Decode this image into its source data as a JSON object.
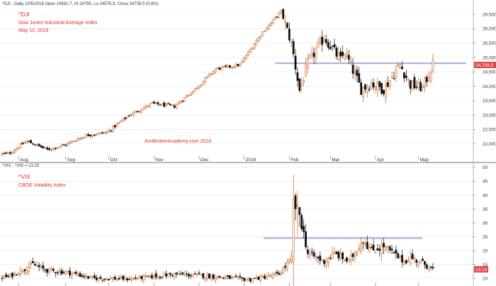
{
  "colors": {
    "up_candle": "#c8641e",
    "down_candle": "#111111",
    "annotation_red": "#e03030",
    "resistance_line": "#b4b0dc",
    "price_badge": "#e04848",
    "grid": "#e6e6e6"
  },
  "top_panel": {
    "header": "^DJI - Daily 10/5/2018 Open 24591.7, Hi 24795, Lo 24575.9, Close 24739.5 (0.8%)",
    "symbol": "^DJI",
    "name": "Dow Jones Industrial Average Index",
    "date": "May 10, 2018",
    "watermark": "AmiBrokerAcademy.com   2018",
    "price_badge": "24,739.5",
    "y_ticks": [
      "26,500",
      "26,000",
      "25,500",
      "25,000",
      "24,500",
      "24,000",
      "23,500",
      "23,000",
      "22,500",
      "22,000"
    ],
    "resistance_level": 24800
  },
  "bottom_panel": {
    "header": "^VIX - ^VIX = 13.23",
    "symbol": "^VIX",
    "name": "CBOE Volatility Index",
    "price_badge": "13.23",
    "y_ticks": [
      "50",
      "45",
      "40",
      "35",
      "30",
      "25",
      "20",
      "15",
      "10"
    ],
    "resistance_level": 24.5
  },
  "x_labels": [
    "Aug",
    "Sep",
    "Oct",
    "Nov",
    "Dec",
    "2018",
    "Feb",
    "Mar",
    "Apr",
    "May"
  ],
  "chart_data": [
    {
      "type": "candlestick",
      "title": "^DJI",
      "ylim": [
        21550,
        26700
      ],
      "grid": true,
      "close_anchors": [
        {
          "date": "2017-07-25",
          "value": 21650
        },
        {
          "date": "2017-08-07",
          "value": 22100
        },
        {
          "date": "2017-08-21",
          "value": 21800
        },
        {
          "date": "2017-08-31",
          "value": 21950
        },
        {
          "date": "2017-09-15",
          "value": 22300
        },
        {
          "date": "2017-09-29",
          "value": 22400
        },
        {
          "date": "2017-10-16",
          "value": 23000
        },
        {
          "date": "2017-10-31",
          "value": 23400
        },
        {
          "date": "2017-11-15",
          "value": 23300
        },
        {
          "date": "2017-11-29",
          "value": 23900
        },
        {
          "date": "2017-12-13",
          "value": 24600
        },
        {
          "date": "2017-12-29",
          "value": 24750
        },
        {
          "date": "2018-01-12",
          "value": 25800
        },
        {
          "date": "2018-01-26",
          "value": 26600
        },
        {
          "date": "2018-02-02",
          "value": 25500
        },
        {
          "date": "2018-02-08",
          "value": 23850
        },
        {
          "date": "2018-02-14",
          "value": 24800
        },
        {
          "date": "2018-02-26",
          "value": 25700
        },
        {
          "date": "2018-03-08",
          "value": 24900
        },
        {
          "date": "2018-03-12",
          "value": 25200
        },
        {
          "date": "2018-03-22",
          "value": 23900
        },
        {
          "date": "2018-03-29",
          "value": 24100
        },
        {
          "date": "2018-04-06",
          "value": 23900
        },
        {
          "date": "2018-04-18",
          "value": 24750
        },
        {
          "date": "2018-04-25",
          "value": 24050
        },
        {
          "date": "2018-05-03",
          "value": 23950
        },
        {
          "date": "2018-05-10",
          "value": 24739.5
        }
      ]
    },
    {
      "type": "candlestick",
      "title": "^VIX",
      "ylim": [
        8.5,
        51
      ],
      "grid": true,
      "close_anchors": [
        {
          "date": "2017-07-25",
          "value": 10.5
        },
        {
          "date": "2017-08-10",
          "value": 15
        },
        {
          "date": "2017-08-18",
          "value": 13
        },
        {
          "date": "2017-09-05",
          "value": 12
        },
        {
          "date": "2017-09-20",
          "value": 10
        },
        {
          "date": "2017-10-15",
          "value": 9.8
        },
        {
          "date": "2017-11-15",
          "value": 11.5
        },
        {
          "date": "2017-12-01",
          "value": 11
        },
        {
          "date": "2018-01-05",
          "value": 9.5
        },
        {
          "date": "2018-01-25",
          "value": 11.5
        },
        {
          "date": "2018-02-02",
          "value": 17
        },
        {
          "date": "2018-02-05",
          "value": 37
        },
        {
          "date": "2018-02-08",
          "value": 33
        },
        {
          "date": "2018-02-14",
          "value": 19
        },
        {
          "date": "2018-02-26",
          "value": 16
        },
        {
          "date": "2018-03-05",
          "value": 19
        },
        {
          "date": "2018-03-14",
          "value": 16
        },
        {
          "date": "2018-03-23",
          "value": 24
        },
        {
          "date": "2018-03-29",
          "value": 20
        },
        {
          "date": "2018-04-06",
          "value": 21.5
        },
        {
          "date": "2018-04-20",
          "value": 16
        },
        {
          "date": "2018-04-25",
          "value": 17.5
        },
        {
          "date": "2018-05-03",
          "value": 15.5
        },
        {
          "date": "2018-05-10",
          "value": 13.23
        }
      ]
    }
  ]
}
